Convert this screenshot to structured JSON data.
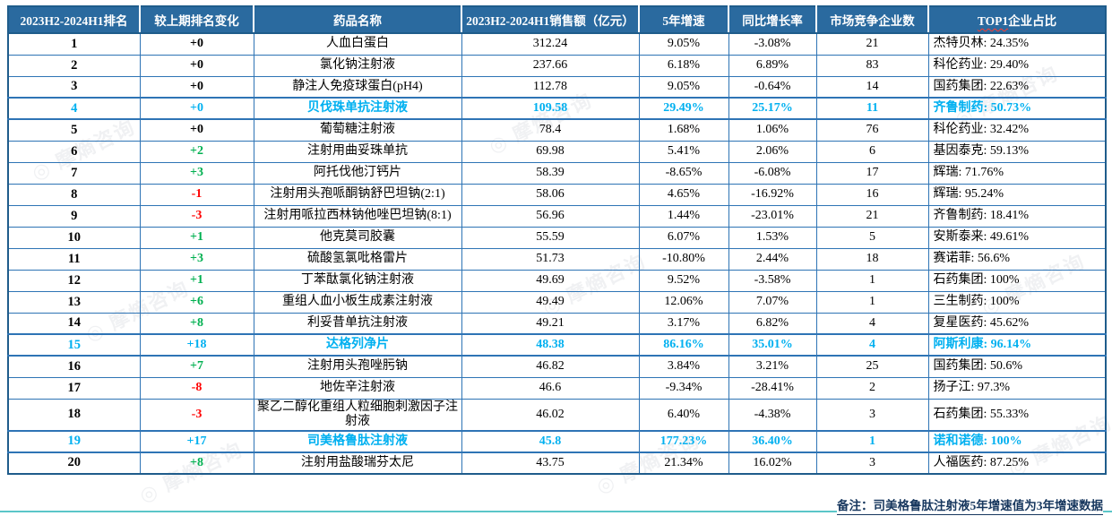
{
  "table": {
    "columns": [
      "2023H2-2024H1排名",
      "较上期排名变化",
      "药品名称",
      "2023H2-2024H1销售额（亿元）",
      "5年增速",
      "同比增长率",
      "市场竞争企业数",
      "TOP1企业占比"
    ],
    "header_top1_prefix": "TOP1",
    "header_top1_suffix": "企业占比",
    "rows": [
      {
        "rank": "1",
        "change": "+0",
        "name": "人血白蛋白",
        "sales": "312.24",
        "growth_5y": "9.05%",
        "yoy": "-3.08%",
        "competitors": "21",
        "top1": "杰特贝林: 24.35%",
        "highlight": false
      },
      {
        "rank": "2",
        "change": "+0",
        "name": "氯化钠注射液",
        "sales": "237.66",
        "growth_5y": "6.18%",
        "yoy": "6.89%",
        "competitors": "83",
        "top1": "科伦药业: 29.40%",
        "highlight": false
      },
      {
        "rank": "3",
        "change": "+0",
        "name": "静注人免疫球蛋白(pH4)",
        "sales": "112.78",
        "growth_5y": "9.05%",
        "yoy": "-0.64%",
        "competitors": "14",
        "top1": "国药集团: 22.63%",
        "highlight": false
      },
      {
        "rank": "4",
        "change": "+0",
        "name": "贝伐珠单抗注射液",
        "sales": "109.58",
        "growth_5y": "29.49%",
        "yoy": "25.17%",
        "competitors": "11",
        "top1": "齐鲁制药: 50.73%",
        "highlight": true
      },
      {
        "rank": "5",
        "change": "+0",
        "name": "葡萄糖注射液",
        "sales": "78.4",
        "growth_5y": "1.68%",
        "yoy": "1.06%",
        "competitors": "76",
        "top1": "科伦药业: 32.42%",
        "highlight": false
      },
      {
        "rank": "6",
        "change": "+2",
        "name": "注射用曲妥珠单抗",
        "sales": "69.98",
        "growth_5y": "5.41%",
        "yoy": "2.06%",
        "competitors": "6",
        "top1": "基因泰克: 59.13%",
        "highlight": false
      },
      {
        "rank": "7",
        "change": "+3",
        "name": "阿托伐他汀钙片",
        "sales": "58.39",
        "growth_5y": "-8.65%",
        "yoy": "-6.08%",
        "competitors": "17",
        "top1": "辉瑞: 71.76%",
        "highlight": false
      },
      {
        "rank": "8",
        "change": "-1",
        "name": "注射用头孢哌酮钠舒巴坦钠(2:1)",
        "sales": "58.06",
        "growth_5y": "4.65%",
        "yoy": "-16.92%",
        "competitors": "16",
        "top1": "辉瑞: 95.24%",
        "highlight": false
      },
      {
        "rank": "9",
        "change": "-3",
        "name": "注射用哌拉西林钠他唑巴坦钠(8:1)",
        "sales": "56.96",
        "growth_5y": "1.44%",
        "yoy": "-23.01%",
        "competitors": "21",
        "top1": "齐鲁制药: 18.41%",
        "highlight": false
      },
      {
        "rank": "10",
        "change": "+1",
        "name": "他克莫司胶囊",
        "sales": "55.59",
        "growth_5y": "6.07%",
        "yoy": "1.53%",
        "competitors": "5",
        "top1": "安斯泰来: 49.61%",
        "highlight": false
      },
      {
        "rank": "11",
        "change": "+3",
        "name": "硫酸氢氯吡格雷片",
        "sales": "51.73",
        "growth_5y": "-10.80%",
        "yoy": "2.44%",
        "competitors": "18",
        "top1": "赛诺菲: 56.6%",
        "highlight": false
      },
      {
        "rank": "12",
        "change": "+1",
        "name": "丁苯酞氯化钠注射液",
        "sales": "49.69",
        "growth_5y": "9.52%",
        "yoy": "-3.58%",
        "competitors": "1",
        "top1": "石药集团: 100%",
        "highlight": false
      },
      {
        "rank": "13",
        "change": "+6",
        "name": "重组人血小板生成素注射液",
        "sales": "49.49",
        "growth_5y": "12.06%",
        "yoy": "7.07%",
        "competitors": "1",
        "top1": "三生制药: 100%",
        "highlight": false
      },
      {
        "rank": "14",
        "change": "+8",
        "name": "利妥昔单抗注射液",
        "sales": "49.21",
        "growth_5y": "3.17%",
        "yoy": "6.82%",
        "competitors": "4",
        "top1": "复星医药: 45.62%",
        "highlight": false
      },
      {
        "rank": "15",
        "change": "+18",
        "name": "达格列净片",
        "sales": "48.38",
        "growth_5y": "86.16%",
        "yoy": "35.01%",
        "competitors": "4",
        "top1": "阿斯利康: 96.14%",
        "highlight": true
      },
      {
        "rank": "16",
        "change": "+7",
        "name": "注射用头孢唑肟钠",
        "sales": "46.82",
        "growth_5y": "3.84%",
        "yoy": "3.21%",
        "competitors": "25",
        "top1": "国药集团: 50.6%",
        "highlight": false
      },
      {
        "rank": "17",
        "change": "-8",
        "name": "地佐辛注射液",
        "sales": "46.6",
        "growth_5y": "-9.34%",
        "yoy": "-28.41%",
        "competitors": "2",
        "top1": "扬子江: 97.3%",
        "highlight": false
      },
      {
        "rank": "18",
        "change": "-3",
        "name": "聚乙二醇化重组人粒细胞刺激因子注射液",
        "sales": "46.02",
        "growth_5y": "6.40%",
        "yoy": "-4.38%",
        "competitors": "3",
        "top1": "石药集团: 55.33%",
        "highlight": false
      },
      {
        "rank": "19",
        "change": "+17",
        "name": "司美格鲁肽注射液",
        "sales": "45.8",
        "growth_5y": "177.23%",
        "yoy": "36.40%",
        "competitors": "1",
        "top1": "诺和诺德: 100%",
        "highlight": true
      },
      {
        "rank": "20",
        "change": "+8",
        "name": "注射用盐酸瑞芬太尼",
        "sales": "43.75",
        "growth_5y": "21.34%",
        "yoy": "16.02%",
        "competitors": "3",
        "top1": "人福医药: 87.25%",
        "highlight": false
      }
    ]
  },
  "footnote": "备注：司美格鲁肽注射液5年增速值为3年增速数据",
  "watermark": {
    "text": "◎ 摩熵咨询"
  },
  "colors": {
    "header_bg": "#2a6a9f",
    "grid_border": "#2e74b5",
    "outer_border": "#1f5c8b",
    "highlight_text": "#00b0f0",
    "positive_change": "#00b050",
    "negative_change": "#ff0000",
    "footnote_text": "#17375e",
    "bottom_rule": "#5bc6c8"
  }
}
